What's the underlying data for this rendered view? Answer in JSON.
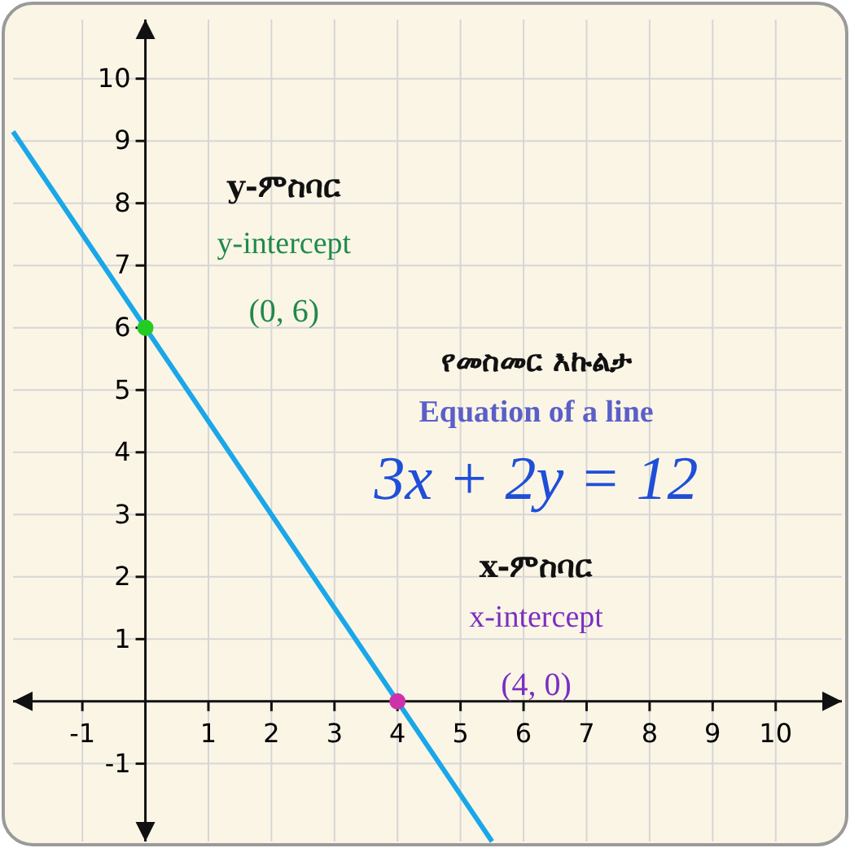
{
  "chart_data": {
    "type": "line",
    "xlim": [
      -2.1,
      11.05
    ],
    "ylim": [
      -2.25,
      10.95
    ],
    "xticks": [
      -1,
      1,
      2,
      3,
      4,
      5,
      6,
      7,
      8,
      9,
      10
    ],
    "yticks": [
      -1,
      1,
      2,
      3,
      4,
      5,
      6,
      7,
      8,
      9,
      10
    ],
    "grid": true,
    "series": [
      {
        "color": "#1aa7e8",
        "x": [
          -2.1,
          5.5
        ],
        "values": [
          9.15,
          -2.25
        ]
      },
      {
        "type": "scatter",
        "color": "#22cc22",
        "x": [
          0
        ],
        "values": [
          6
        ],
        "marker": "circle"
      },
      {
        "type": "scatter",
        "color": "#cc33aa",
        "x": [
          4
        ],
        "values": [
          0
        ],
        "marker": "circle"
      }
    ],
    "annotations": [
      "y-ምስባር",
      "y-intercept",
      "(0, 6)",
      "የመስመር እኩልታ",
      "Equation of a line",
      "3x + 2y = 12",
      "x-ምስባር",
      "x-intercept",
      "(4, 0)"
    ]
  }
}
